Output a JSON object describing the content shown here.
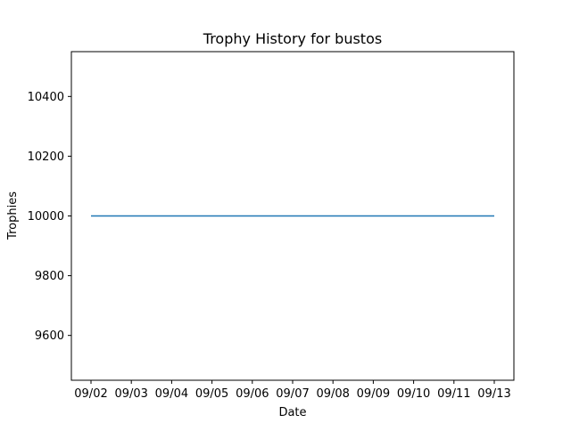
{
  "chart_data": {
    "type": "line",
    "title": "Trophy History for bustos",
    "xlabel": "Date",
    "ylabel": "Trophies",
    "x": [
      "09/02",
      "09/03",
      "09/04",
      "09/05",
      "09/06",
      "09/07",
      "09/08",
      "09/09",
      "09/10",
      "09/11",
      "09/13"
    ],
    "x_ticks": [
      "09/02",
      "09/03",
      "09/04",
      "09/05",
      "09/06",
      "09/07",
      "09/08",
      "09/09",
      "09/10",
      "09/11",
      "09/13"
    ],
    "series": [
      {
        "values": [
          10000,
          10000,
          10000,
          10000,
          10000,
          10000,
          10000,
          10000,
          10000,
          10000,
          10000
        ],
        "color": "#1f77b4"
      }
    ],
    "y_ticks": [
      9600,
      9800,
      10000,
      10200,
      10400
    ],
    "ylim": [
      9450,
      10550
    ],
    "grid": false,
    "legend": "none"
  }
}
